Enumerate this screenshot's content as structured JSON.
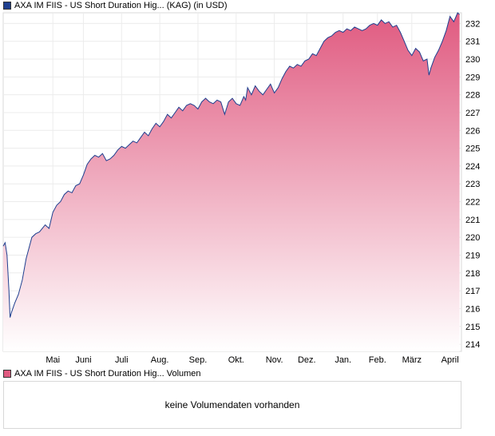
{
  "price_legend": {
    "label": "AXA IM FIIS - US Short Duration Hig... (KAG) (in USD)",
    "color": "#1f3f8f"
  },
  "volume_legend": {
    "label": "AXA IM FIIS - US Short Duration Hig... Volumen",
    "color": "#e05a80"
  },
  "volume_panel": {
    "message": "keine Volumendaten vorhanden"
  },
  "chart_data": {
    "type": "area",
    "line_color": "#1f3f8f",
    "fill_top_color": "#e05a80",
    "fill_bottom_color": "#ffffff",
    "grid": true,
    "ylim": [
      213.6,
      232.6
    ],
    "y_ticks": [
      214,
      215,
      216,
      217,
      218,
      219,
      220,
      221,
      222,
      223,
      224,
      225,
      226,
      227,
      228,
      229,
      230,
      231,
      232
    ],
    "x_ticks": [
      "Mai",
      "Juni",
      "Juli",
      "Aug.",
      "Sep.",
      "Okt.",
      "Nov.",
      "Dez.",
      "Jan.",
      "Feb.",
      "März",
      "April"
    ],
    "x_tick_positions": [
      0.7,
      1.5,
      2.5,
      3.5,
      4.5,
      5.5,
      6.5,
      7.35,
      8.3,
      9.2,
      10.1,
      11.1
    ],
    "x_range": [
      -0.6,
      11.4
    ],
    "series": [
      {
        "x": [
          -0.6,
          -0.55,
          -0.5,
          -0.45,
          -0.42,
          -0.38,
          -0.3,
          -0.2,
          -0.1,
          0.0,
          0.1,
          0.15,
          0.25,
          0.35,
          0.5,
          0.6,
          0.7,
          0.8,
          0.9,
          1.0,
          1.1,
          1.2,
          1.3,
          1.4,
          1.5,
          1.6,
          1.7,
          1.8,
          1.9,
          2.0,
          2.1,
          2.2,
          2.3,
          2.4,
          2.5,
          2.6,
          2.7,
          2.8,
          2.9,
          3.0,
          3.1,
          3.2,
          3.3,
          3.4,
          3.5,
          3.6,
          3.7,
          3.8,
          3.9,
          4.0,
          4.1,
          4.2,
          4.3,
          4.4,
          4.5,
          4.6,
          4.7,
          4.8,
          4.9,
          5.0,
          5.1,
          5.2,
          5.3,
          5.4,
          5.5,
          5.6,
          5.7,
          5.75,
          5.8,
          5.9,
          6.0,
          6.1,
          6.2,
          6.3,
          6.4,
          6.5,
          6.6,
          6.7,
          6.8,
          6.9,
          7.0,
          7.1,
          7.2,
          7.3,
          7.4,
          7.5,
          7.6,
          7.7,
          7.8,
          7.9,
          8.0,
          8.1,
          8.2,
          8.3,
          8.4,
          8.5,
          8.6,
          8.7,
          8.8,
          8.9,
          9.0,
          9.1,
          9.2,
          9.3,
          9.4,
          9.5,
          9.6,
          9.7,
          9.8,
          9.9,
          10.0,
          10.1,
          10.2,
          10.3,
          10.4,
          10.5,
          10.55,
          10.6,
          10.7,
          10.8,
          10.9,
          11.0,
          11.1,
          11.2,
          11.3,
          11.35
        ],
        "y": [
          219.5,
          219.7,
          219.0,
          217.0,
          215.5,
          215.8,
          216.3,
          216.8,
          217.6,
          218.8,
          219.6,
          220.0,
          220.2,
          220.3,
          220.7,
          220.5,
          221.4,
          221.8,
          222.0,
          222.4,
          222.6,
          222.5,
          222.9,
          223.0,
          223.5,
          224.1,
          224.4,
          224.6,
          224.5,
          224.7,
          224.3,
          224.4,
          224.6,
          224.9,
          225.1,
          225.0,
          225.2,
          225.4,
          225.3,
          225.6,
          225.9,
          225.7,
          226.1,
          226.4,
          226.2,
          226.5,
          226.9,
          226.7,
          227.0,
          227.3,
          227.1,
          227.4,
          227.5,
          227.4,
          227.2,
          227.6,
          227.8,
          227.6,
          227.5,
          227.7,
          227.6,
          226.9,
          227.6,
          227.8,
          227.5,
          227.4,
          227.9,
          227.7,
          228.4,
          228.0,
          228.5,
          228.2,
          228.0,
          228.3,
          228.6,
          228.1,
          228.4,
          228.9,
          229.3,
          229.6,
          229.5,
          229.7,
          229.6,
          229.9,
          230.0,
          230.3,
          230.2,
          230.6,
          231.0,
          231.2,
          231.3,
          231.5,
          231.6,
          231.5,
          231.7,
          231.6,
          231.8,
          231.7,
          231.6,
          231.7,
          231.9,
          232.0,
          231.9,
          232.2,
          232.0,
          232.1,
          231.8,
          231.9,
          231.5,
          231.0,
          230.5,
          230.2,
          230.6,
          230.4,
          229.9,
          230.0,
          229.1,
          229.5,
          230.1,
          230.5,
          231.0,
          231.6,
          232.4,
          232.1,
          232.6,
          232.5
        ]
      }
    ]
  }
}
